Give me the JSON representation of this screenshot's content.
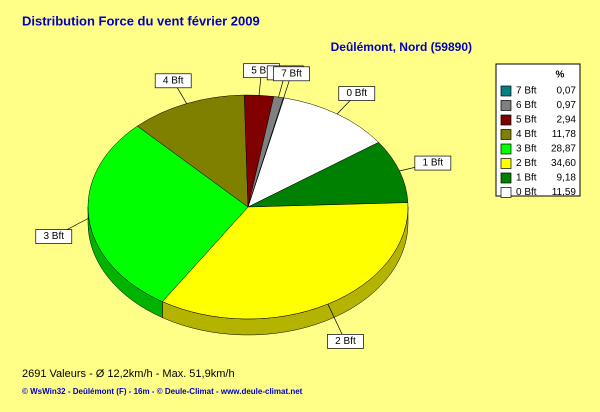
{
  "chart_data": {
    "type": "pie",
    "title": "Distribution Force du vent  février 2009",
    "subtitle": "Deûlémont, Nord (59890)",
    "legend_header": "%",
    "categories": [
      "7 Bft",
      "6 Bft",
      "5 Bft",
      "4 Bft",
      "3 Bft",
      "2 Bft",
      "1 Bft",
      "0 Bft"
    ],
    "values": [
      0.07,
      0.97,
      2.94,
      11.78,
      28.87,
      34.6,
      9.18,
      11.59
    ],
    "value_labels": [
      "0,07",
      "0,97",
      "2,94",
      "11,78",
      "28,87",
      "34,60",
      "9,18",
      "11,59"
    ],
    "colors": [
      "#008080",
      "#808080",
      "#800000",
      "#808000",
      "#00ff00",
      "#ffff00",
      "#008000",
      "#ffffff"
    ],
    "legend": "right",
    "footer": "2691 Valeurs   -   Ø 12,2km/h  -  Max. 51,9km/h",
    "credit": "© WsWin32  -  Deûlémont (F) - 16m  -  © Deule-Climat - www.deule-climat.net"
  }
}
